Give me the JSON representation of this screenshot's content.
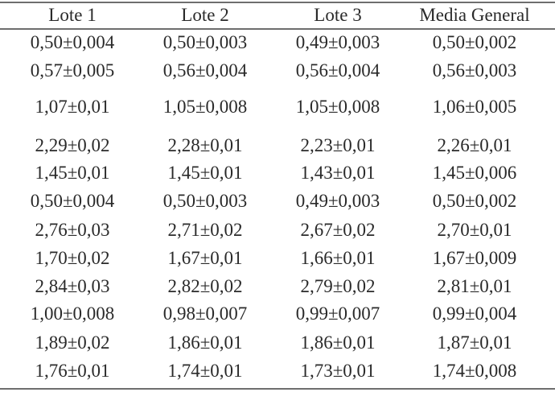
{
  "table": {
    "headers": [
      "Lote 1",
      "Lote 2",
      "Lote 3",
      "Media General"
    ],
    "rows": [
      [
        "0,50±0,004",
        "0,50±0,003",
        "0,49±0,003",
        "0,50±0,002"
      ],
      [
        "0,57±0,005",
        "0,56±0,004",
        "0,56±0,004",
        "0,56±0,003"
      ],
      [
        "1,07±0,01",
        "1,05±0,008",
        "1,05±0,008",
        "1,06±0,005"
      ],
      [
        "2,29±0,02",
        "2,28±0,01",
        "2,23±0,01",
        "2,26±0,01"
      ],
      [
        "1,45±0,01",
        "1,45±0,01",
        "1,43±0,01",
        "1,45±0,006"
      ],
      [
        "0,50±0,004",
        "0,50±0,003",
        "0,49±0,003",
        "0,50±0,002"
      ],
      [
        "2,76±0,03",
        "2,71±0,02",
        "2,67±0,02",
        "2,70±0,01"
      ],
      [
        "1,70±0,02",
        "1,67±0,01",
        "1,66±0,01",
        "1,67±0,009"
      ],
      [
        "2,84±0,03",
        "2,82±0,02",
        "2,79±0,02",
        "2,81±0,01"
      ],
      [
        "1,00±0,008",
        "0,98±0,007",
        "0,99±0,007",
        "0,99±0,004"
      ],
      [
        "1,89±0,02",
        "1,86±0,01",
        "1,86±0,01",
        "1,87±0,01"
      ],
      [
        "1,76±0,01",
        "1,74±0,01",
        "1,73±0,01",
        "1,74±0,008"
      ]
    ]
  }
}
